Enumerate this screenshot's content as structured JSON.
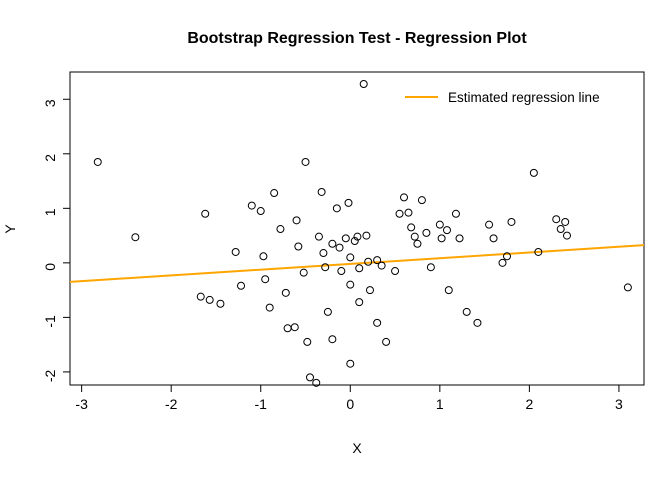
{
  "chart_data": {
    "type": "scatter",
    "title": "Bootstrap Regression Test - Regression Plot",
    "xlabel": "X",
    "ylabel": "Y",
    "legend": "Estimated regression line",
    "legend_position": "top-right",
    "grid": false,
    "xlim": [
      -3.13,
      3.28
    ],
    "ylim": [
      -2.24,
      3.5
    ],
    "x_ticks": [
      -3,
      -2,
      -1,
      0,
      1,
      2,
      3
    ],
    "y_ticks": [
      -2,
      -1,
      0,
      1,
      2,
      3
    ],
    "point_color": "#000000",
    "line_color": "#FFA500",
    "regression": {
      "slope": 0.105,
      "intercept": -0.02
    },
    "points": [
      [
        -2.82,
        1.85
      ],
      [
        -2.4,
        0.47
      ],
      [
        -1.62,
        0.9
      ],
      [
        -1.67,
        -0.62
      ],
      [
        -1.57,
        -0.68
      ],
      [
        -1.45,
        -0.75
      ],
      [
        -1.28,
        0.2
      ],
      [
        -1.22,
        -0.42
      ],
      [
        -1.1,
        1.05
      ],
      [
        -1.0,
        0.95
      ],
      [
        -0.97,
        0.12
      ],
      [
        -0.95,
        -0.3
      ],
      [
        -0.9,
        -0.82
      ],
      [
        -0.85,
        1.28
      ],
      [
        -0.78,
        0.62
      ],
      [
        -0.72,
        -0.55
      ],
      [
        -0.7,
        -1.2
      ],
      [
        -0.62,
        -1.18
      ],
      [
        -0.6,
        0.78
      ],
      [
        -0.58,
        0.3
      ],
      [
        -0.52,
        -0.18
      ],
      [
        -0.5,
        1.85
      ],
      [
        -0.48,
        -1.45
      ],
      [
        -0.45,
        -2.1
      ],
      [
        -0.38,
        -2.2
      ],
      [
        -0.35,
        0.48
      ],
      [
        -0.32,
        1.3
      ],
      [
        -0.3,
        0.18
      ],
      [
        -0.28,
        -0.08
      ],
      [
        -0.25,
        -0.9
      ],
      [
        -0.2,
        0.35
      ],
      [
        -0.2,
        -1.4
      ],
      [
        -0.15,
        1.0
      ],
      [
        -0.12,
        0.28
      ],
      [
        -0.1,
        -0.15
      ],
      [
        -0.05,
        0.45
      ],
      [
        -0.02,
        1.1
      ],
      [
        0.0,
        0.1
      ],
      [
        0.0,
        -0.4
      ],
      [
        0.0,
        -1.85
      ],
      [
        0.05,
        0.4
      ],
      [
        0.08,
        0.48
      ],
      [
        0.1,
        -0.1
      ],
      [
        0.1,
        -0.72
      ],
      [
        0.15,
        3.28
      ],
      [
        0.18,
        0.5
      ],
      [
        0.2,
        0.02
      ],
      [
        0.22,
        -0.5
      ],
      [
        0.3,
        0.05
      ],
      [
        0.3,
        -1.1
      ],
      [
        0.35,
        -0.05
      ],
      [
        0.4,
        -1.45
      ],
      [
        0.5,
        -0.15
      ],
      [
        0.55,
        0.9
      ],
      [
        0.6,
        1.2
      ],
      [
        0.65,
        0.92
      ],
      [
        0.68,
        0.65
      ],
      [
        0.72,
        0.48
      ],
      [
        0.75,
        0.35
      ],
      [
        0.8,
        1.15
      ],
      [
        0.85,
        0.55
      ],
      [
        0.9,
        -0.08
      ],
      [
        1.0,
        0.7
      ],
      [
        1.02,
        0.45
      ],
      [
        1.08,
        0.6
      ],
      [
        1.1,
        -0.5
      ],
      [
        1.18,
        0.9
      ],
      [
        1.22,
        0.45
      ],
      [
        1.3,
        -0.9
      ],
      [
        1.42,
        -1.1
      ],
      [
        1.55,
        0.7
      ],
      [
        1.6,
        0.45
      ],
      [
        1.7,
        0.0
      ],
      [
        1.75,
        0.12
      ],
      [
        1.8,
        0.75
      ],
      [
        2.05,
        1.65
      ],
      [
        2.1,
        0.2
      ],
      [
        2.3,
        0.8
      ],
      [
        2.35,
        0.62
      ],
      [
        2.4,
        0.75
      ],
      [
        2.42,
        0.5
      ],
      [
        3.1,
        -0.45
      ]
    ]
  }
}
